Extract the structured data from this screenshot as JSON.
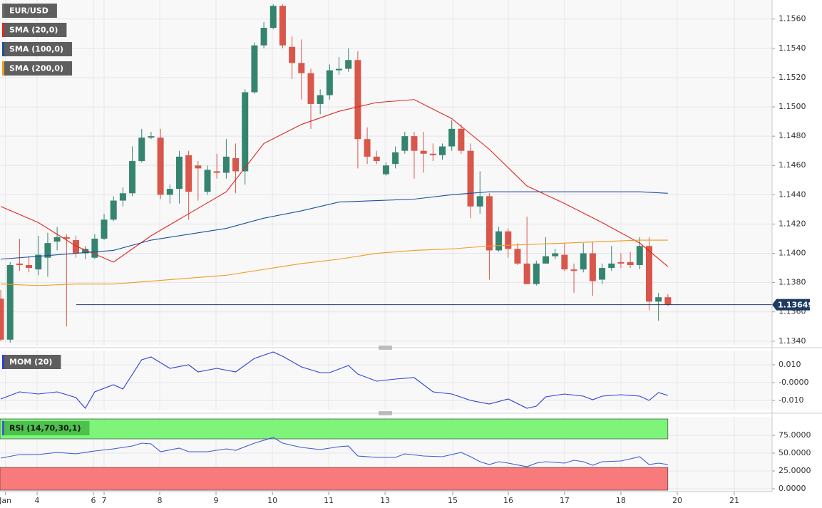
{
  "chart_data": [
    {
      "type": "candlestick",
      "xlim": [
        -0.08,
        82.09
      ],
      "ylim": [
        1.1337,
        1.1573
      ],
      "yticks": [
        {
          "value": 1.134,
          "label": "1.1340"
        },
        {
          "value": 1.136,
          "label": "1.1360"
        },
        {
          "value": 1.138,
          "label": "1.1380"
        },
        {
          "value": 1.14,
          "label": "1.1400"
        },
        {
          "value": 1.142,
          "label": "1.1420"
        },
        {
          "value": 1.144,
          "label": "1.1440"
        },
        {
          "value": 1.146,
          "label": "1.1460"
        },
        {
          "value": 1.148,
          "label": "1.1480"
        },
        {
          "value": 1.15,
          "label": "1.1500"
        },
        {
          "value": 1.152,
          "label": "1.1520"
        },
        {
          "value": 1.154,
          "label": "1.1540"
        },
        {
          "value": 1.156,
          "label": "1.1560"
        }
      ],
      "grid": true,
      "last_price": 1.13649,
      "last_price_color": "#1f3b63",
      "series": [
        {
          "name": "EUR/USD",
          "type": "candlestick",
          "color": "#6a6a6a",
          "up_color": "#35846f",
          "down_color": "#d9564a",
          "open": [
            1.1369,
            1.1341,
            1.1393,
            1.1392,
            1.1389,
            1.1397,
            1.1408,
            1.1411,
            1.1409,
            1.14,
            1.1397,
            1.141,
            1.1423,
            1.1436,
            1.1441,
            1.1463,
            1.1479,
            1.1479,
            1.144,
            1.1444,
            1.1467,
            1.146,
            1.1442,
            1.1456,
            1.1455,
            1.1465,
            1.1456,
            1.151,
            1.1542,
            1.1554,
            1.1569,
            1.1541,
            1.153,
            1.1523,
            1.1502,
            1.1508,
            1.1525,
            1.1526,
            1.1532,
            1.1478,
            1.1466,
            1.1454,
            1.1461,
            1.147,
            1.148,
            1.147,
            1.1468,
            1.1467,
            1.1473,
            1.1485,
            1.147,
            1.1432,
            1.1439,
            1.1402,
            1.1415,
            1.1403,
            1.1393,
            1.1379,
            1.1393,
            1.1398,
            1.1399,
            1.1389,
            1.1389,
            1.14,
            1.1382,
            1.139,
            1.1394,
            1.1394,
            1.1392,
            1.1405,
            1.1367,
            1.137
          ],
          "high": [
            1.1375,
            1.1394,
            1.141,
            1.1398,
            1.1412,
            1.1414,
            1.1418,
            1.1413,
            1.1412,
            1.1405,
            1.1413,
            1.1427,
            1.1439,
            1.1445,
            1.1473,
            1.1485,
            1.1483,
            1.1485,
            1.1447,
            1.147,
            1.147,
            1.1463,
            1.146,
            1.1468,
            1.1478,
            1.1475,
            1.1512,
            1.1544,
            1.1558,
            1.157,
            1.157,
            1.1548,
            1.1546,
            1.1526,
            1.1512,
            1.1529,
            1.1534,
            1.154,
            1.1538,
            1.1486,
            1.147,
            1.1462,
            1.1473,
            1.1483,
            1.1483,
            1.1483,
            1.1475,
            1.1475,
            1.1491,
            1.1488,
            1.1475,
            1.1456,
            1.1441,
            1.1418,
            1.1417,
            1.1407,
            1.1425,
            1.1395,
            1.1411,
            1.1403,
            1.1407,
            1.1393,
            1.1407,
            1.1408,
            1.1393,
            1.1405,
            1.14,
            1.1401,
            1.1411,
            1.1411,
            1.1373,
            1.1372
          ],
          "low": [
            1.134,
            1.1339,
            1.1388,
            1.1387,
            1.1385,
            1.1384,
            1.1402,
            1.135,
            1.1397,
            1.1396,
            1.1396,
            1.1409,
            1.1422,
            1.1432,
            1.1439,
            1.1462,
            1.1478,
            1.1437,
            1.1434,
            1.1434,
            1.1423,
            1.1436,
            1.144,
            1.1451,
            1.1451,
            1.1441,
            1.1447,
            1.1509,
            1.154,
            1.1553,
            1.154,
            1.1519,
            1.1505,
            1.1485,
            1.1495,
            1.1505,
            1.1522,
            1.1524,
            1.1458,
            1.1461,
            1.1461,
            1.1453,
            1.1458,
            1.1468,
            1.1451,
            1.1455,
            1.1463,
            1.1464,
            1.147,
            1.1468,
            1.1424,
            1.1427,
            1.1382,
            1.1401,
            1.1397,
            1.1392,
            1.1379,
            1.1378,
            1.1393,
            1.1396,
            1.1388,
            1.1373,
            1.1387,
            1.1371,
            1.1379,
            1.1388,
            1.139,
            1.139,
            1.1389,
            1.1361,
            1.1354,
            1.1364
          ],
          "close": [
            1.1341,
            1.1392,
            1.1392,
            1.139,
            1.1399,
            1.1407,
            1.1411,
            1.141,
            1.14,
            1.1403,
            1.141,
            1.1423,
            1.1436,
            1.1441,
            1.1463,
            1.1479,
            1.148,
            1.144,
            1.1444,
            1.1466,
            1.1442,
            1.1458,
            1.1457,
            1.1455,
            1.1466,
            1.1456,
            1.151,
            1.1542,
            1.1554,
            1.1569,
            1.1542,
            1.153,
            1.1523,
            1.1502,
            1.1508,
            1.1525,
            1.1526,
            1.1532,
            1.1478,
            1.1466,
            1.1463,
            1.146,
            1.1469,
            1.148,
            1.147,
            1.1468,
            1.1467,
            1.1473,
            1.1485,
            1.147,
            1.1432,
            1.1439,
            1.1402,
            1.1415,
            1.1403,
            1.1393,
            1.1379,
            1.1393,
            1.1398,
            1.14,
            1.1389,
            1.1388,
            1.14,
            1.1381,
            1.139,
            1.1393,
            1.1393,
            1.1392,
            1.1405,
            1.1367,
            1.137,
            1.1365
          ]
        },
        {
          "name": "SMA (20,0)",
          "color": "#e3241b",
          "x": [
            0,
            4,
            8,
            12,
            16,
            20,
            24,
            28,
            32,
            36,
            40,
            44,
            48,
            52,
            56,
            60,
            64,
            68,
            71
          ],
          "values": [
            1.1432,
            1.1421,
            1.1405,
            1.1394,
            1.1412,
            1.1427,
            1.1442,
            1.1475,
            1.1488,
            1.1497,
            1.1503,
            1.1505,
            1.1492,
            1.1471,
            1.1446,
            1.1434,
            1.1421,
            1.1407,
            1.1391
          ]
        },
        {
          "name": "SMA (100,0)",
          "color": "#1d4f9c",
          "x": [
            0,
            4,
            8,
            12,
            16,
            20,
            24,
            28,
            32,
            36,
            40,
            44,
            48,
            52,
            56,
            60,
            64,
            68,
            71
          ],
          "values": [
            1.1396,
            1.1398,
            1.14,
            1.1402,
            1.1409,
            1.1413,
            1.1417,
            1.1424,
            1.1429,
            1.1435,
            1.1436,
            1.1437,
            1.144,
            1.1442,
            1.1442,
            1.1442,
            1.1442,
            1.1442,
            1.1441
          ]
        },
        {
          "name": "SMA (200,0)",
          "color": "#f29a1f",
          "x": [
            0,
            4,
            8,
            12,
            16,
            20,
            24,
            28,
            32,
            36,
            40,
            44,
            48,
            52,
            56,
            60,
            64,
            68,
            71
          ],
          "values": [
            1.1379,
            1.1378,
            1.1379,
            1.1379,
            1.1381,
            1.1383,
            1.1385,
            1.1389,
            1.1393,
            1.1396,
            1.14,
            1.1402,
            1.1403,
            1.1405,
            1.1406,
            1.1407,
            1.1408,
            1.1409,
            1.1409
          ]
        }
      ]
    },
    {
      "type": "line",
      "xlim": [
        -0.08,
        82.09
      ],
      "ylim": [
        -0.0156,
        0.018
      ],
      "yticks": [
        {
          "value": 0.01,
          "label": "0.010"
        },
        {
          "value": 0,
          "label": "-0.0000"
        },
        {
          "value": -0.01,
          "label": "-0.010"
        }
      ],
      "grid": true,
      "series": [
        {
          "name": "MOM (20)",
          "color": "#2b3fd6",
          "x": [
            0,
            2,
            4,
            6,
            8,
            9,
            10,
            12,
            13,
            15,
            16,
            18,
            20,
            21,
            23,
            25,
            27,
            29,
            30,
            32,
            34,
            35,
            37,
            38,
            40,
            42,
            44,
            46,
            48,
            50,
            52,
            54,
            56,
            57,
            58,
            60,
            62,
            63,
            64,
            66,
            68,
            69,
            70,
            71
          ],
          "values": [
            -0.0092,
            -0.0052,
            -0.0064,
            -0.0052,
            -0.0084,
            -0.0144,
            -0.0052,
            -0.0012,
            -0.0036,
            0.0128,
            0.0144,
            0.008,
            0.01,
            0.006,
            0.008,
            0.006,
            0.0136,
            0.0172,
            0.0148,
            0.0088,
            0.0056,
            0.0056,
            0.0096,
            0.0048,
            0.0008,
            0.002,
            0.0028,
            -0.0052,
            -0.0064,
            -0.01,
            -0.012,
            -0.0092,
            -0.0144,
            -0.0132,
            -0.008,
            -0.0064,
            -0.0076,
            -0.0096,
            -0.0076,
            -0.0068,
            -0.0076,
            -0.01,
            -0.0056,
            -0.0072
          ]
        }
      ]
    },
    {
      "type": "line",
      "xlim": [
        -0.08,
        82.09
      ],
      "ylim": [
        -4,
        101
      ],
      "yticks": [
        {
          "value": 75,
          "label": "75.0000"
        },
        {
          "value": 50,
          "label": "50.0000"
        },
        {
          "value": 25,
          "label": "25.0000"
        },
        {
          "value": 0,
          "label": "0.0000"
        }
      ],
      "grid": true,
      "overbought": 70,
      "overbought_color": "#7ef57a",
      "oversold": 30,
      "oversold_color": "#f87a7a",
      "xticks": [
        {
          "value": 0.5,
          "label": "Jan"
        },
        {
          "value": 3.87,
          "label": "4"
        },
        {
          "value": 9.86,
          "label": "6"
        },
        {
          "value": 11.0,
          "label": "7"
        },
        {
          "value": 16.92,
          "label": "8"
        },
        {
          "value": 22.91,
          "label": "9"
        },
        {
          "value": 28.91,
          "label": "10"
        },
        {
          "value": 34.9,
          "label": "11"
        },
        {
          "value": 40.9,
          "label": "13"
        },
        {
          "value": 48.1,
          "label": "15"
        },
        {
          "value": 54.02,
          "label": "16"
        },
        {
          "value": 60.0,
          "label": "17"
        },
        {
          "value": 66.0,
          "label": "18"
        },
        {
          "value": 72.0,
          "label": "20"
        },
        {
          "value": 78.07,
          "label": "21"
        }
      ],
      "series": [
        {
          "name": "RSI (14,70,30,1)",
          "color": "#3b5bd0",
          "x": [
            0,
            2,
            4,
            6,
            8,
            10,
            12,
            14,
            15,
            16,
            17,
            19,
            20,
            22,
            24,
            25,
            27,
            29,
            30,
            32,
            34,
            36,
            37,
            38,
            40,
            42,
            43,
            45,
            47,
            49,
            50,
            51,
            52,
            53,
            54,
            56,
            57,
            58,
            60,
            61,
            62,
            63,
            64,
            66,
            68,
            69,
            70,
            71
          ],
          "values": [
            43,
            48,
            48,
            51,
            49,
            53,
            56,
            60,
            64,
            63,
            52,
            57,
            52,
            52,
            56,
            54,
            64,
            72,
            64,
            58,
            55,
            59,
            60,
            46,
            44,
            44,
            49,
            46,
            45,
            51,
            45,
            38,
            34,
            38,
            36,
            31,
            36,
            38,
            36,
            40,
            38,
            33,
            38,
            39,
            45,
            34,
            36,
            34
          ]
        }
      ]
    }
  ]
}
